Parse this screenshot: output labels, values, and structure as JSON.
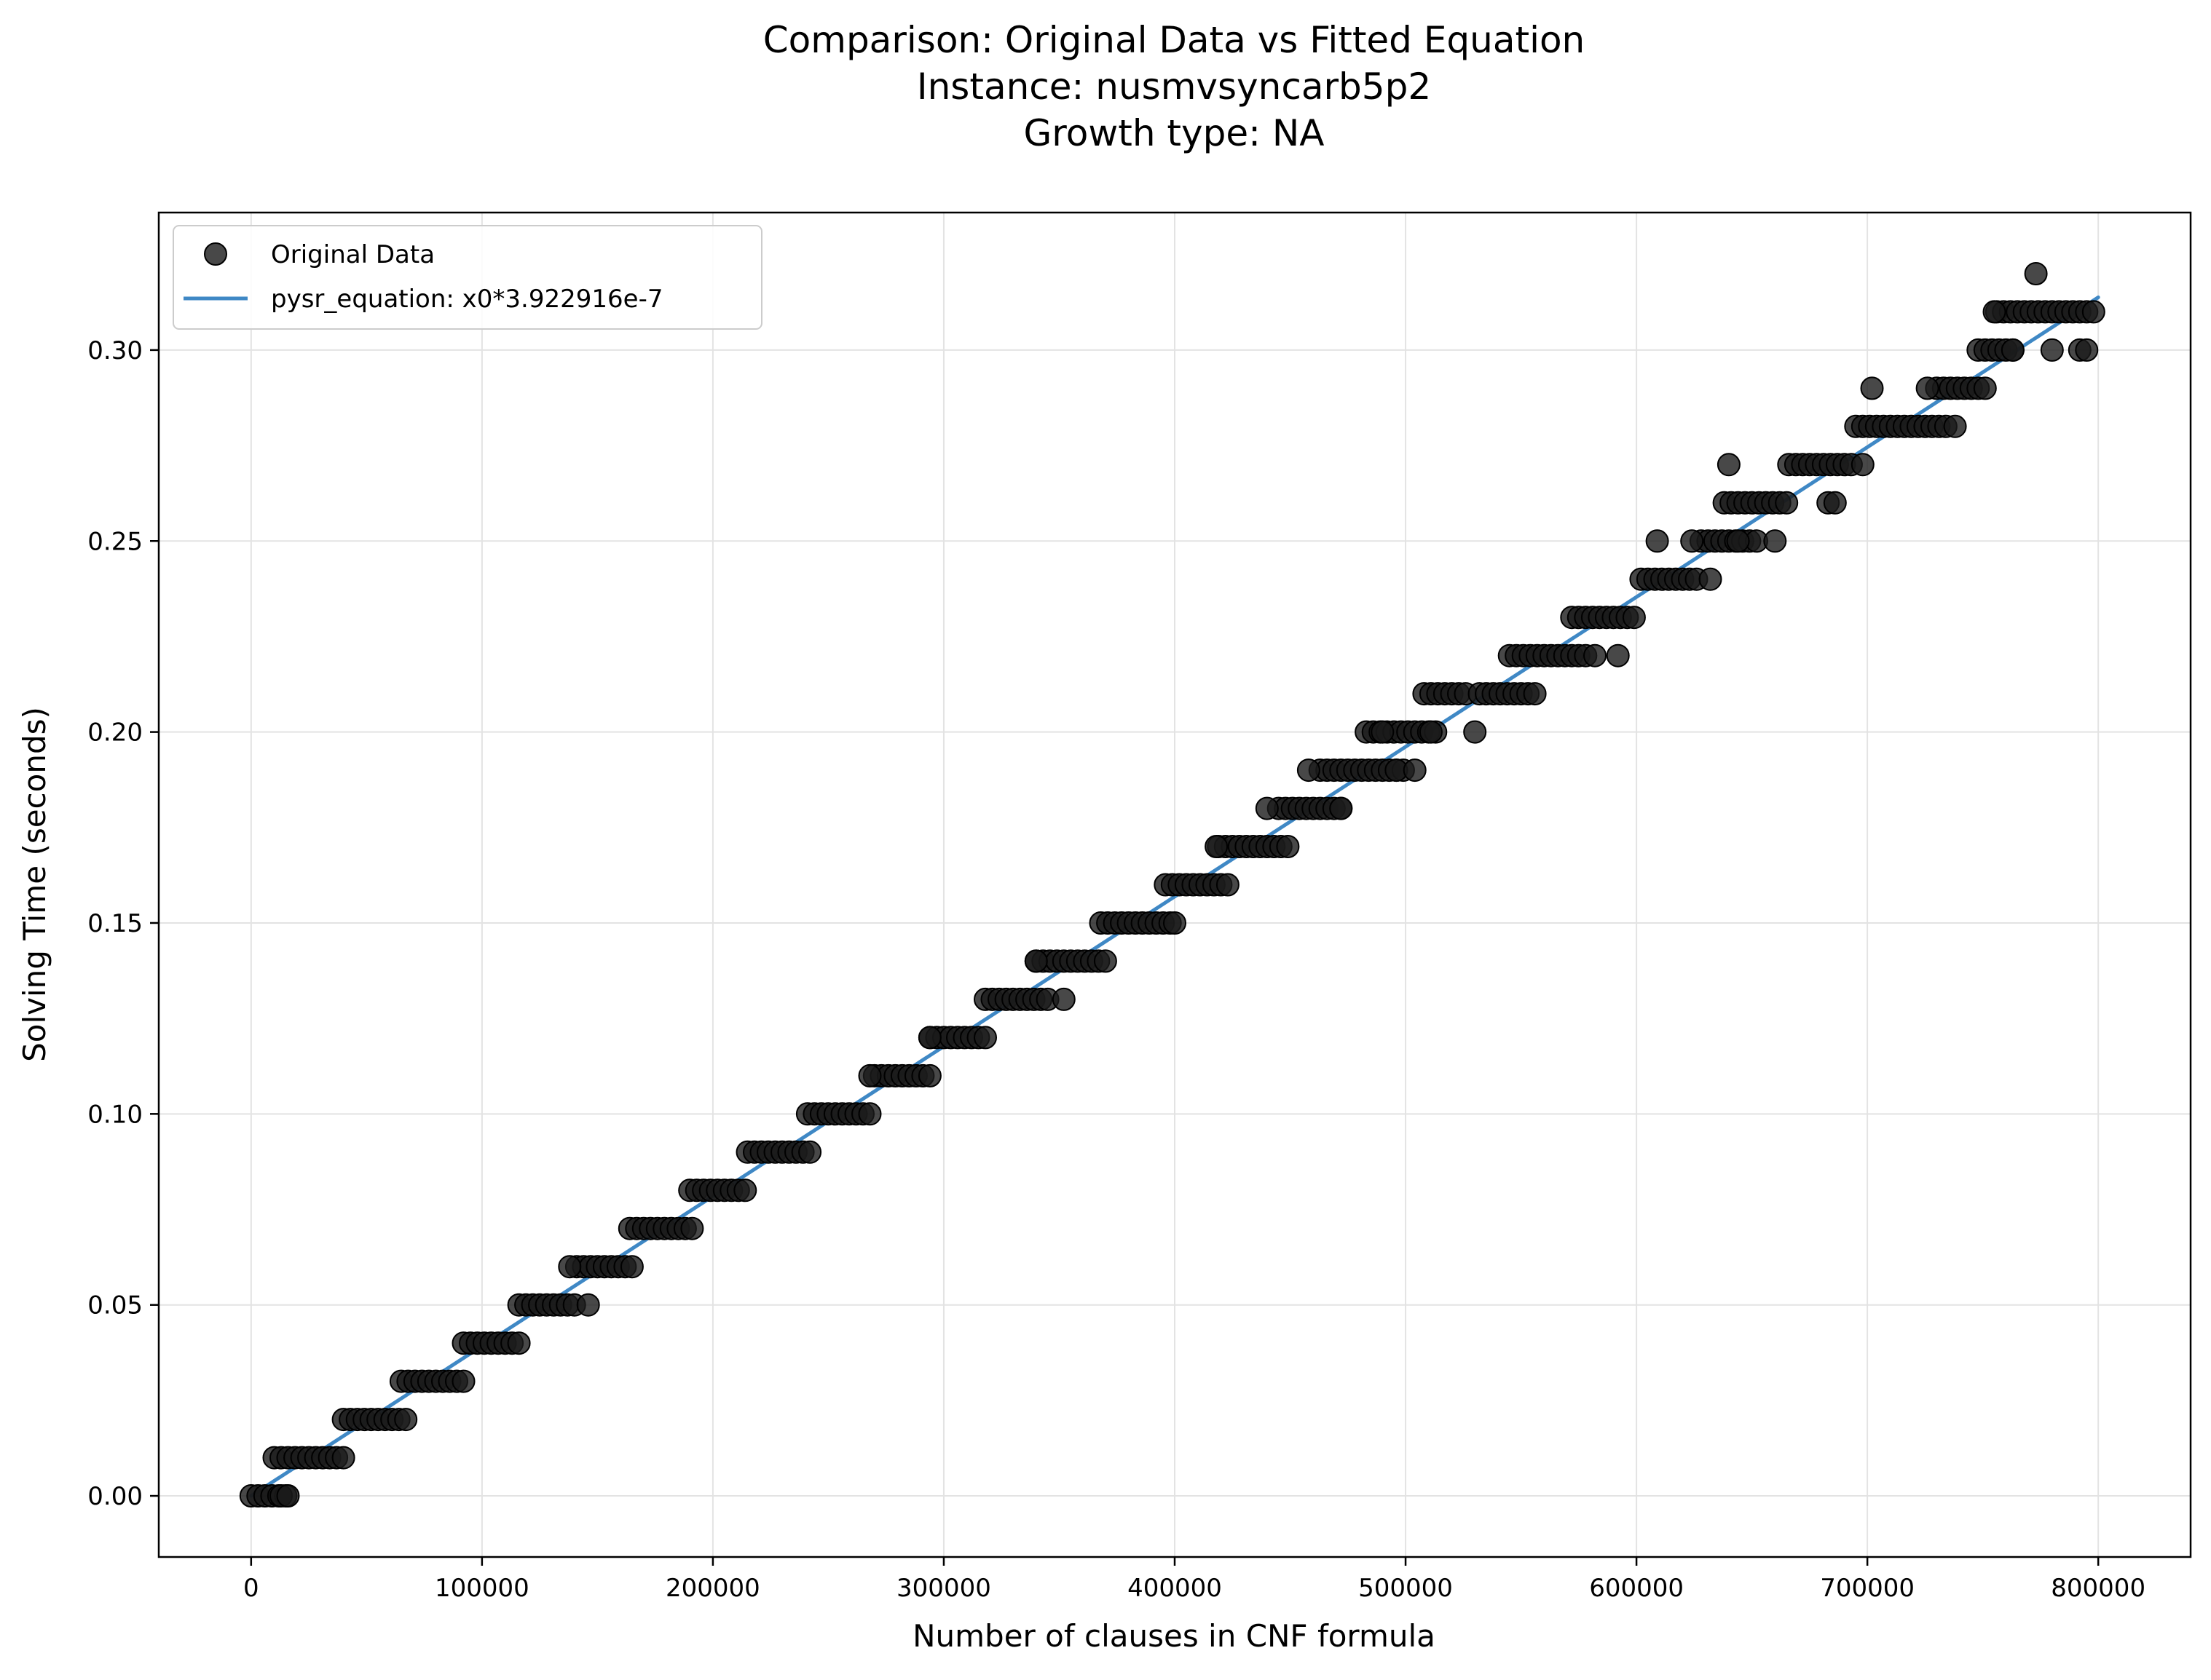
{
  "chart_data": {
    "type": "scatter",
    "title": [
      "Comparison: Original Data vs Fitted Equation",
      "Instance: nusmvsyncarb5p2",
      "Growth type: NA"
    ],
    "xlabel": "Number of clauses in CNF formula",
    "ylabel": "Solving Time (seconds)",
    "xlim": [
      -40000,
      840000
    ],
    "ylim": [
      -0.016,
      0.336
    ],
    "x_ticks": [
      0,
      100000,
      200000,
      300000,
      400000,
      500000,
      600000,
      700000,
      800000
    ],
    "x_tick_labels": [
      "0",
      "100000",
      "200000",
      "300000",
      "400000",
      "500000",
      "600000",
      "700000",
      "800000"
    ],
    "y_ticks": [
      0.0,
      0.05,
      0.1,
      0.15,
      0.2,
      0.25,
      0.3
    ],
    "y_tick_labels": [
      "0.00",
      "0.05",
      "0.10",
      "0.15",
      "0.20",
      "0.25",
      "0.30"
    ],
    "grid": true,
    "legend_position": "top-left",
    "series": [
      {
        "name": "Original Data",
        "type": "scatter",
        "color": "#1a1a1a",
        "segments": [
          [
            0,
            15000,
            0.0
          ],
          [
            10000,
            40000,
            0.01
          ],
          [
            40000,
            67000,
            0.02
          ],
          [
            65000,
            93000,
            0.03
          ],
          [
            92000,
            118000,
            0.04
          ],
          [
            116000,
            140000,
            0.05
          ],
          [
            141000,
            165000,
            0.06
          ],
          [
            164000,
            191000,
            0.07
          ],
          [
            190000,
            216000,
            0.08
          ],
          [
            215000,
            242000,
            0.09
          ],
          [
            241000,
            268000,
            0.1
          ],
          [
            270000,
            295000,
            0.11
          ],
          [
            294000,
            320000,
            0.12
          ],
          [
            318000,
            345000,
            0.13
          ],
          [
            340000,
            370000,
            0.14
          ],
          [
            368000,
            400000,
            0.15
          ],
          [
            396000,
            423000,
            0.16
          ],
          [
            419000,
            449000,
            0.17
          ],
          [
            445000,
            473000,
            0.18
          ],
          [
            463000,
            500000,
            0.19
          ],
          [
            483000,
            515000,
            0.2
          ],
          [
            508000,
            528000,
            0.21
          ],
          [
            532000,
            558000,
            0.21
          ],
          [
            545000,
            578000,
            0.22
          ],
          [
            572000,
            601000,
            0.23
          ],
          [
            602000,
            628000,
            0.24
          ],
          [
            628000,
            652000,
            0.25
          ],
          [
            638000,
            665000,
            0.26
          ],
          [
            666000,
            695000,
            0.27
          ],
          [
            695000,
            735000,
            0.28
          ],
          [
            730000,
            752000,
            0.29
          ],
          [
            748000,
            765000,
            0.3
          ],
          [
            756000,
            796000,
            0.31
          ]
        ],
        "points": [
          [
            13000,
            0.0
          ],
          [
            16000,
            0.0
          ],
          [
            138000,
            0.06
          ],
          [
            146000,
            0.05
          ],
          [
            268000,
            0.11
          ],
          [
            294000,
            0.12
          ],
          [
            340000,
            0.14
          ],
          [
            352000,
            0.13
          ],
          [
            400000,
            0.15
          ],
          [
            418000,
            0.17
          ],
          [
            440000,
            0.18
          ],
          [
            458000,
            0.19
          ],
          [
            472000,
            0.18
          ],
          [
            490000,
            0.2
          ],
          [
            496000,
            0.19
          ],
          [
            504000,
            0.19
          ],
          [
            511000,
            0.2
          ],
          [
            530000,
            0.2
          ],
          [
            582000,
            0.22
          ],
          [
            592000,
            0.22
          ],
          [
            609000,
            0.25
          ],
          [
            624000,
            0.25
          ],
          [
            632000,
            0.24
          ],
          [
            640000,
            0.27
          ],
          [
            644000,
            0.25
          ],
          [
            660000,
            0.25
          ],
          [
            683000,
            0.26
          ],
          [
            686000,
            0.26
          ],
          [
            698000,
            0.27
          ],
          [
            702000,
            0.29
          ],
          [
            726000,
            0.29
          ],
          [
            738000,
            0.28
          ],
          [
            755000,
            0.31
          ],
          [
            763000,
            0.3
          ],
          [
            773000,
            0.32
          ],
          [
            780000,
            0.3
          ],
          [
            792000,
            0.3
          ],
          [
            798000,
            0.31
          ],
          [
            795000,
            0.3
          ]
        ]
      },
      {
        "name": "pysr_equation: x0*3.922916e-7",
        "type": "line",
        "color": "#3f88c5",
        "x": [
          0,
          800000
        ],
        "y": [
          0.0,
          0.3138
        ]
      }
    ]
  }
}
